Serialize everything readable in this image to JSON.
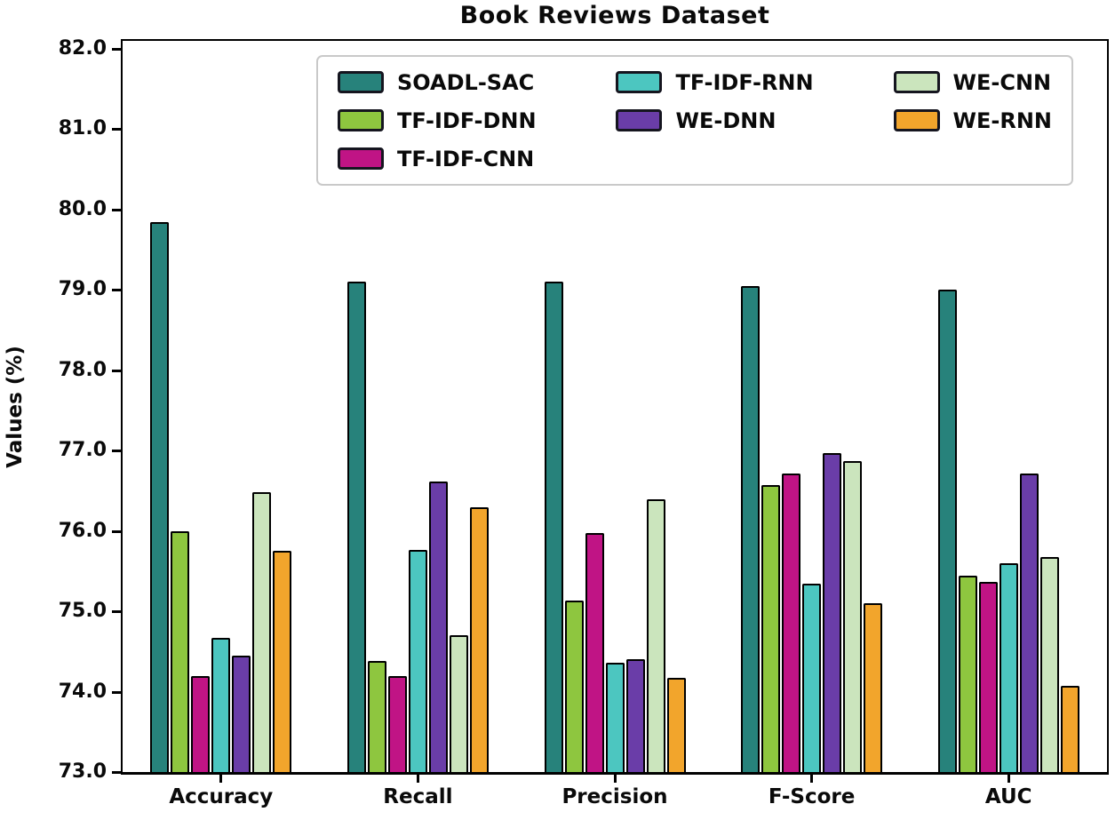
{
  "title": "Book Reviews Dataset",
  "chart_data": {
    "type": "bar",
    "title": "Book Reviews Dataset",
    "xlabel": "",
    "ylabel": "Values (%)",
    "categories": [
      "Accuracy",
      "Recall",
      "Precision",
      "F-Score",
      "AUC"
    ],
    "series": [
      {
        "name": "SOADL-SAC",
        "color": "#27827b",
        "values": [
          79.85,
          79.1,
          79.1,
          79.05,
          79.0
        ]
      },
      {
        "name": "TF-IDF-DNN",
        "color": "#8ec63f",
        "values": [
          76.0,
          74.38,
          75.13,
          76.57,
          75.44
        ]
      },
      {
        "name": "TF-IDF-CNN",
        "color": "#c01485",
        "values": [
          74.2,
          74.2,
          75.97,
          76.72,
          75.37
        ]
      },
      {
        "name": "TF-IDF-RNN",
        "color": "#4cc6c0",
        "values": [
          74.67,
          75.77,
          74.36,
          75.35,
          75.6
        ]
      },
      {
        "name": "WE-DNN",
        "color": "#6a3da8",
        "values": [
          74.45,
          76.62,
          74.4,
          76.97,
          76.72
        ]
      },
      {
        "name": "WE-CNN",
        "color": "#cbe5bd",
        "values": [
          76.48,
          74.7,
          76.4,
          76.87,
          75.68
        ]
      },
      {
        "name": "WE-RNN",
        "color": "#f2a52c",
        "values": [
          75.75,
          76.3,
          74.17,
          75.1,
          74.07
        ]
      }
    ],
    "ylim": [
      73.0,
      82.1
    ],
    "yticks": [
      "82.0",
      "81.0",
      "80.0",
      "79.0",
      "78.0",
      "77.0",
      "76.0",
      "75.0",
      "74.0",
      "73.0"
    ],
    "grid": false,
    "legend_position": "upper center",
    "legend_columns": [
      [
        "SOADL-SAC",
        "TF-IDF-DNN",
        "TF-IDF-CNN"
      ],
      [
        "TF-IDF-RNN",
        "WE-DNN"
      ],
      [
        "WE-CNN",
        "WE-RNN"
      ]
    ]
  }
}
